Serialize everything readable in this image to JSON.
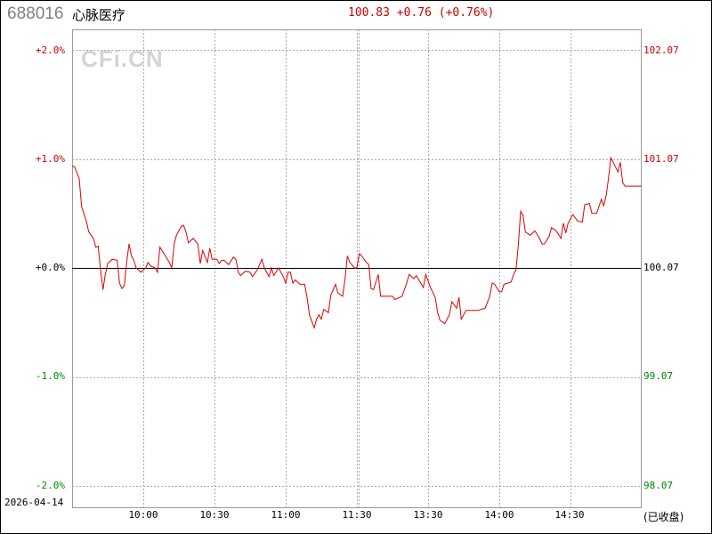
{
  "header": {
    "code": "688016",
    "name": "心脉医疗",
    "quote": "100.83 +0.76 (+0.76%)"
  },
  "watermark": "CFi.CN",
  "date": "2026-04-14",
  "status": "(已收盘)",
  "colors": {
    "up": "#cc0000",
    "down": "#008800",
    "flat": "#000000",
    "line": "#dd0000",
    "grid": "#aaaaaa"
  },
  "chart_data": {
    "type": "line",
    "title": "",
    "xlabel": "",
    "ylabel": "",
    "ylim": [
      -2.0,
      2.0
    ],
    "grid": true,
    "prev_close": 100.07,
    "left_ticks": [
      {
        "label": "+2.0%",
        "value": 2.0
      },
      {
        "label": "+1.0%",
        "value": 1.0
      },
      {
        "label": "+0.0%",
        "value": 0.0
      },
      {
        "label": "-1.0%",
        "value": -1.0
      },
      {
        "label": "-2.0%",
        "value": -2.0
      }
    ],
    "right_ticks": [
      "102.07",
      "101.07",
      "100.07",
      "99.07",
      "98.07"
    ],
    "x_ticks": [
      "10:00",
      "10:30",
      "11:00",
      "11:30",
      "13:30",
      "14:00",
      "14:30"
    ],
    "series": [
      {
        "points": [
          [
            "09:30",
            0.93
          ],
          [
            "09:31",
            0.93
          ],
          [
            "09:33",
            0.82
          ],
          [
            "09:34",
            0.56
          ],
          [
            "09:36",
            0.43
          ],
          [
            "09:37",
            0.33
          ],
          [
            "09:39",
            0.27
          ],
          [
            "09:40",
            0.19
          ],
          [
            "09:41",
            0.2
          ],
          [
            "09:42",
            -0.02
          ],
          [
            "09:43",
            -0.2
          ],
          [
            "09:44",
            -0.06
          ],
          [
            "09:45",
            0.04
          ],
          [
            "09:47",
            0.08
          ],
          [
            "09:49",
            0.07
          ],
          [
            "09:50",
            -0.14
          ],
          [
            "09:51",
            -0.19
          ],
          [
            "09:52",
            -0.16
          ],
          [
            "09:53",
            0.05
          ],
          [
            "09:54",
            0.22
          ],
          [
            "09:55",
            0.11
          ],
          [
            "09:56",
            0.07
          ],
          [
            "09:57",
            0.0
          ],
          [
            "09:59",
            -0.04
          ],
          [
            "10:01",
            0.0
          ],
          [
            "10:02",
            0.05
          ],
          [
            "10:03",
            0.02
          ],
          [
            "10:05",
            0.0
          ],
          [
            "10:06",
            -0.04
          ],
          [
            "10:07",
            0.19
          ],
          [
            "10:09",
            0.12
          ],
          [
            "10:11",
            0.05
          ],
          [
            "10:12",
            0.0
          ],
          [
            "10:13",
            0.22
          ],
          [
            "10:14",
            0.3
          ],
          [
            "10:16",
            0.38
          ],
          [
            "10:17",
            0.39
          ],
          [
            "10:18",
            0.33
          ],
          [
            "10:19",
            0.23
          ],
          [
            "10:21",
            0.27
          ],
          [
            "10:23",
            0.22
          ],
          [
            "10:24",
            0.04
          ],
          [
            "10:25",
            0.16
          ],
          [
            "10:27",
            0.05
          ],
          [
            "10:28",
            0.18
          ],
          [
            "10:29",
            0.08
          ],
          [
            "10:31",
            0.08
          ],
          [
            "10:32",
            0.04
          ],
          [
            "10:33",
            0.07
          ],
          [
            "10:34",
            0.07
          ],
          [
            "10:36",
            0.03
          ],
          [
            "10:38",
            0.1
          ],
          [
            "10:39",
            0.08
          ],
          [
            "10:40",
            -0.04
          ],
          [
            "10:41",
            -0.07
          ],
          [
            "10:43",
            -0.03
          ],
          [
            "10:45",
            -0.04
          ],
          [
            "10:46",
            -0.08
          ],
          [
            "10:48",
            -0.02
          ],
          [
            "10:50",
            0.08
          ],
          [
            "10:51",
            0.0
          ],
          [
            "10:53",
            -0.08
          ],
          [
            "10:54",
            0.0
          ],
          [
            "10:55",
            -0.07
          ],
          [
            "10:57",
            0.0
          ],
          [
            "10:59",
            -0.08
          ],
          [
            "11:00",
            -0.14
          ],
          [
            "11:01",
            -0.04
          ],
          [
            "11:02",
            -0.04
          ],
          [
            "11:03",
            -0.14
          ],
          [
            "11:04",
            -0.11
          ],
          [
            "11:06",
            -0.15
          ],
          [
            "11:08",
            -0.15
          ],
          [
            "11:09",
            -0.27
          ],
          [
            "11:10",
            -0.43
          ],
          [
            "11:12",
            -0.55
          ],
          [
            "11:13",
            -0.47
          ],
          [
            "11:14",
            -0.43
          ],
          [
            "11:15",
            -0.47
          ],
          [
            "11:16",
            -0.38
          ],
          [
            "11:18",
            -0.41
          ],
          [
            "11:19",
            -0.25
          ],
          [
            "11:21",
            -0.15
          ],
          [
            "11:22",
            -0.23
          ],
          [
            "11:24",
            -0.26
          ],
          [
            "11:25",
            -0.1
          ],
          [
            "11:26",
            0.11
          ],
          [
            "11:27",
            0.05
          ],
          [
            "11:29",
            0.0
          ],
          [
            "11:30",
            0.0
          ],
          [
            "13:01",
            0.13
          ],
          [
            "13:02",
            0.11
          ],
          [
            "13:04",
            0.05
          ],
          [
            "13:05",
            0.03
          ],
          [
            "13:06",
            -0.19
          ],
          [
            "13:07",
            -0.2
          ],
          [
            "13:09",
            -0.06
          ],
          [
            "13:10",
            -0.26
          ],
          [
            "13:15",
            -0.26
          ],
          [
            "13:16",
            -0.29
          ],
          [
            "13:19",
            -0.26
          ],
          [
            "13:21",
            -0.14
          ],
          [
            "13:22",
            -0.06
          ],
          [
            "13:24",
            -0.1
          ],
          [
            "13:25",
            -0.07
          ],
          [
            "13:28",
            -0.18
          ],
          [
            "13:29",
            -0.06
          ],
          [
            "13:31",
            -0.18
          ],
          [
            "13:33",
            -0.27
          ],
          [
            "13:34",
            -0.41
          ],
          [
            "13:35",
            -0.48
          ],
          [
            "13:37",
            -0.51
          ],
          [
            "13:39",
            -0.43
          ],
          [
            "13:40",
            -0.31
          ],
          [
            "13:42",
            -0.37
          ],
          [
            "13:43",
            -0.27
          ],
          [
            "13:44",
            -0.47
          ],
          [
            "13:46",
            -0.39
          ],
          [
            "13:51",
            -0.39
          ],
          [
            "13:54",
            -0.37
          ],
          [
            "13:56",
            -0.26
          ],
          [
            "13:57",
            -0.14
          ],
          [
            "13:58",
            -0.15
          ],
          [
            "14:00",
            -0.22
          ],
          [
            "14:01",
            -0.22
          ],
          [
            "14:02",
            -0.15
          ],
          [
            "14:05",
            -0.13
          ],
          [
            "14:06",
            -0.06
          ],
          [
            "14:07",
            -0.02
          ],
          [
            "14:08",
            0.2
          ],
          [
            "14:09",
            0.52
          ],
          [
            "14:10",
            0.48
          ],
          [
            "14:11",
            0.33
          ],
          [
            "14:13",
            0.3
          ],
          [
            "14:15",
            0.34
          ],
          [
            "14:17",
            0.27
          ],
          [
            "14:18",
            0.22
          ],
          [
            "14:19",
            0.22
          ],
          [
            "14:21",
            0.29
          ],
          [
            "14:22",
            0.37
          ],
          [
            "14:24",
            0.34
          ],
          [
            "14:26",
            0.27
          ],
          [
            "14:27",
            0.41
          ],
          [
            "14:28",
            0.32
          ],
          [
            "14:29",
            0.41
          ],
          [
            "14:31",
            0.49
          ],
          [
            "14:33",
            0.43
          ],
          [
            "14:35",
            0.42
          ],
          [
            "14:36",
            0.58
          ],
          [
            "14:38",
            0.59
          ],
          [
            "14:39",
            0.5
          ],
          [
            "14:41",
            0.5
          ],
          [
            "14:43",
            0.63
          ],
          [
            "14:44",
            0.57
          ],
          [
            "14:45",
            0.66
          ],
          [
            "14:46",
            0.82
          ],
          [
            "14:47",
            1.01
          ],
          [
            "14:48",
            0.97
          ],
          [
            "14:50",
            0.88
          ],
          [
            "14:51",
            0.97
          ],
          [
            "14:52",
            0.78
          ],
          [
            "14:53",
            0.75
          ],
          [
            "15:00",
            0.75
          ]
        ]
      }
    ]
  }
}
